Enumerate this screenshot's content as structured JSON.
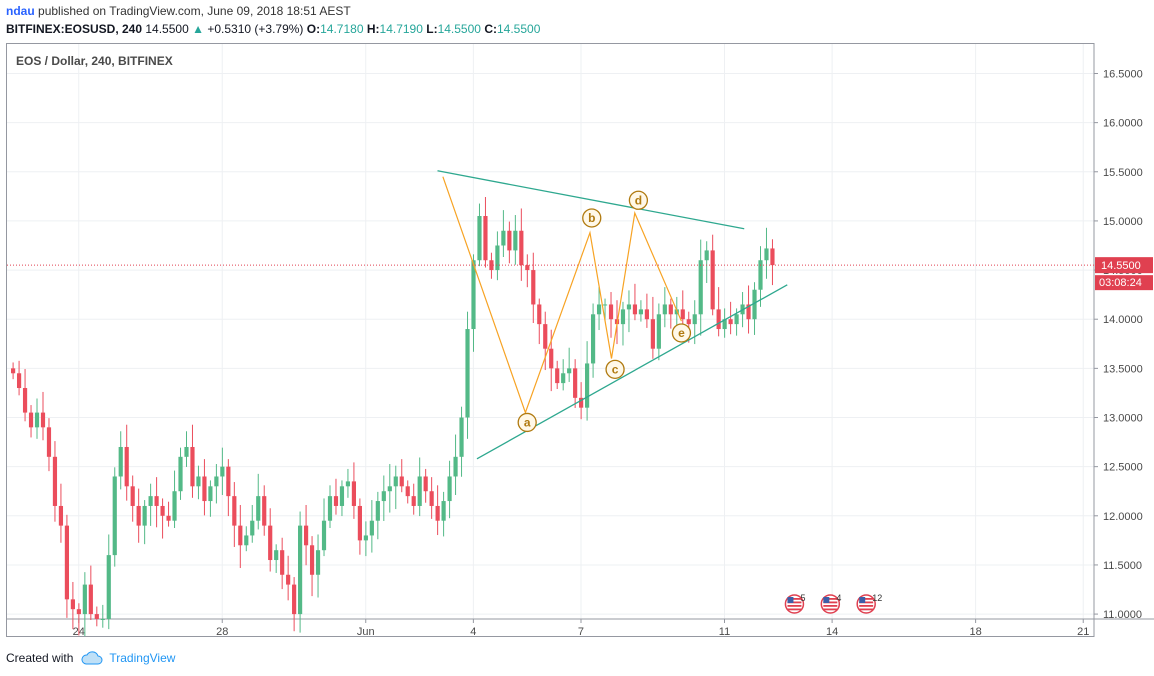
{
  "header": {
    "author": "ndau",
    "published": "published on TradingView.com, June 09, 2018 18:51 AEST",
    "symbol": "BITFINEX:EOSUSD, 240",
    "last": "14.5500",
    "change": "+0.5310 (+3.79%)",
    "o_label": "O:",
    "o_value": "14.7180",
    "h_label": "H:",
    "h_value": "14.7190",
    "l_label": "L:",
    "l_value": "14.5500",
    "c_label": "C:",
    "c_value": "14.5500"
  },
  "pane_title": "EOS / Dollar, 240, BITFINEX",
  "footer": {
    "created_with": "Created with",
    "brand": "TradingView"
  },
  "colors": {
    "up": "#53b987",
    "down": "#eb4d5c",
    "trendline": "#2ea88f",
    "wave": "#f7a324",
    "label_ring": "#b07a10",
    "price_line": "#e04050",
    "price_tag": "#e04050"
  },
  "chart_data": {
    "type": "candlestick",
    "title": "EOS / Dollar, 240, BITFINEX",
    "y_range": [
      10.95,
      16.8
    ],
    "y_ticks": [
      "16.5000",
      "16.0000",
      "15.5000",
      "15.0000",
      "14.5000",
      "14.0000",
      "13.5000",
      "13.0000",
      "12.5000",
      "12.0000",
      "11.5000",
      "11.0000"
    ],
    "x_ticks": [
      {
        "label": "24",
        "day": 0
      },
      {
        "label": "28",
        "day": 4
      },
      {
        "label": "Jun",
        "day": 8
      },
      {
        "label": "4",
        "day": 11
      },
      {
        "label": "7",
        "day": 14
      },
      {
        "label": "11",
        "day": 18
      },
      {
        "label": "14",
        "day": 21
      },
      {
        "label": "18",
        "day": 25
      },
      {
        "label": "21",
        "day": 28
      }
    ],
    "x_range_days": [
      -2,
      28.3
    ],
    "last_price": {
      "value": 14.55,
      "label": "14.5500",
      "countdown": "03:08:24"
    },
    "candle_period_days": 0.16667,
    "first_candle_day": -1.83,
    "closes": [
      13.45,
      13.3,
      13.05,
      12.9,
      13.05,
      12.9,
      12.6,
      12.1,
      11.9,
      11.15,
      11.05,
      11.0,
      11.3,
      11.0,
      10.95,
      10.95,
      11.6,
      12.4,
      12.7,
      12.3,
      12.1,
      11.9,
      12.1,
      12.2,
      12.1,
      12.0,
      11.95,
      12.25,
      12.6,
      12.7,
      12.3,
      12.4,
      12.15,
      12.3,
      12.4,
      12.5,
      12.2,
      11.9,
      11.7,
      11.8,
      11.95,
      12.2,
      11.9,
      11.55,
      11.65,
      11.4,
      11.3,
      11.0,
      11.9,
      11.7,
      11.4,
      11.65,
      11.95,
      12.2,
      12.1,
      12.3,
      12.35,
      12.1,
      11.75,
      11.8,
      11.95,
      12.15,
      12.25,
      12.3,
      12.4,
      12.3,
      12.2,
      12.1,
      12.4,
      12.25,
      12.1,
      11.95,
      12.15,
      12.4,
      12.6,
      13.0,
      13.9,
      14.6,
      15.05,
      14.6,
      14.5,
      14.75,
      14.9,
      14.7,
      14.9,
      14.55,
      14.5,
      14.15,
      13.95,
      13.7,
      13.5,
      13.35,
      13.45,
      13.5,
      13.2,
      13.1,
      13.55,
      14.05,
      14.15,
      14.15,
      14.0,
      13.95,
      14.1,
      14.15,
      14.05,
      14.1,
      14.0,
      13.7,
      14.05,
      14.15,
      14.05,
      14.1,
      14.0,
      13.95,
      14.05,
      14.6,
      14.7,
      14.1,
      13.9,
      14.0,
      13.95,
      14.05,
      14.15,
      14.0,
      14.3,
      14.6,
      14.72,
      14.55
    ],
    "wave_points": [
      {
        "label": "",
        "day": 10.15,
        "price": 15.45
      },
      {
        "label": "a",
        "day": 12.45,
        "price": 13.05
      },
      {
        "label": "b",
        "day": 14.25,
        "price": 14.88
      },
      {
        "label": "c",
        "day": 14.85,
        "price": 13.6
      },
      {
        "label": "d",
        "day": 15.5,
        "price": 15.08
      },
      {
        "label": "e",
        "day": 16.8,
        "price": 13.98
      }
    ],
    "wave_labels": [
      {
        "label": "a",
        "day": 12.5,
        "price": 12.95
      },
      {
        "label": "b",
        "day": 14.3,
        "price": 15.03
      },
      {
        "label": "c",
        "day": 14.95,
        "price": 13.49
      },
      {
        "label": "d",
        "day": 15.6,
        "price": 15.21
      },
      {
        "label": "e",
        "day": 16.8,
        "price": 13.86
      }
    ],
    "trendlines": [
      {
        "name": "upper",
        "from": {
          "day": 10.0,
          "price": 15.51
        },
        "to": {
          "day": 18.55,
          "price": 14.92
        }
      },
      {
        "name": "lower",
        "from": {
          "day": 11.1,
          "price": 12.58
        },
        "to": {
          "day": 19.75,
          "price": 14.35
        }
      }
    ],
    "event_markers": [
      {
        "label": "5",
        "day": 19.95
      },
      {
        "label": "4",
        "day": 20.95
      },
      {
        "label": "12",
        "day": 21.95
      }
    ]
  }
}
